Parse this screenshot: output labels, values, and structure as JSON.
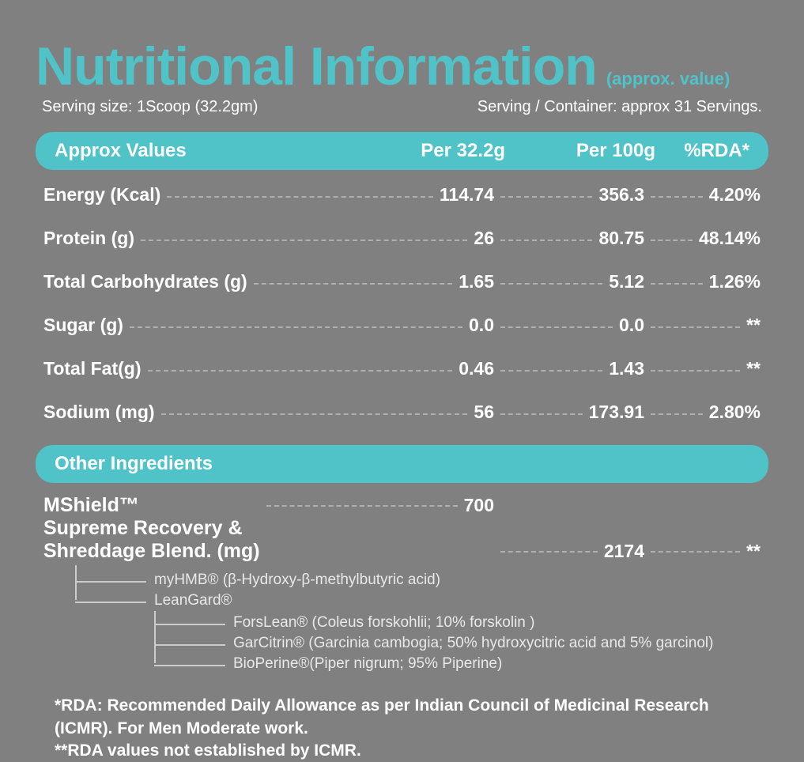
{
  "title": "Nutritional Information",
  "approx_suffix": "(approx. value)",
  "serving_size_label": "Serving size: 1Scoop (32.2gm)",
  "serving_container_label": "Serving / Container: approx 31 Servings.",
  "colors": {
    "accent": "#4fc3c7",
    "background": "#808080",
    "text": "#ffffff",
    "dash": "#b0b0b0",
    "tree_line": "#cccccc"
  },
  "header": {
    "col1": "Approx Values",
    "col2": "Per 32.2g",
    "col3": "Per 100g",
    "col4": "%RDA*"
  },
  "rows": [
    {
      "name": "Energy (Kcal)",
      "per_serving": "114.74",
      "per_100g": "356.3",
      "rda": "4.20%"
    },
    {
      "name": "Protein (g)",
      "per_serving": "26",
      "per_100g": "80.75",
      "rda": "48.14%"
    },
    {
      "name": "Total Carbohydrates (g)",
      "per_serving": "1.65",
      "per_100g": "5.12",
      "rda": "1.26%"
    },
    {
      "name": "Sugar (g)",
      "per_serving": "0.0",
      "per_100g": "0.0",
      "rda": "**"
    },
    {
      "name": "Total Fat(g)",
      "per_serving": "0.46",
      "per_100g": "1.43",
      "rda": "**"
    },
    {
      "name": "Sodium (mg)",
      "per_serving": "56",
      "per_100g": "173.91",
      "rda": "2.80%"
    }
  ],
  "other_ingredients_label": "Other Ingredients",
  "blend": {
    "name": "MShield™\nSupreme Recovery &\nShreddage Blend. (mg)",
    "per_serving": "700",
    "per_100g": "2174",
    "rda": "**",
    "level1": [
      "myHMB® (β-Hydroxy-β-methylbutyric acid)",
      "LeanGard®"
    ],
    "level2": [
      "ForsLean® (Coleus forskohlii; 10% forskolin )",
      "GarCitrin® (Garcinia cambogia; 50% hydroxycitric acid and 5% garcinol)",
      "BioPerine®(Piper nigrum; 95% Piperine)"
    ]
  },
  "footnotes": {
    "line1": "*RDA: Recommended Daily Allowance as per Indian Council of Medicinal Research (ICMR). For Men Moderate work.",
    "line2": "**RDA values not established by ICMR."
  }
}
